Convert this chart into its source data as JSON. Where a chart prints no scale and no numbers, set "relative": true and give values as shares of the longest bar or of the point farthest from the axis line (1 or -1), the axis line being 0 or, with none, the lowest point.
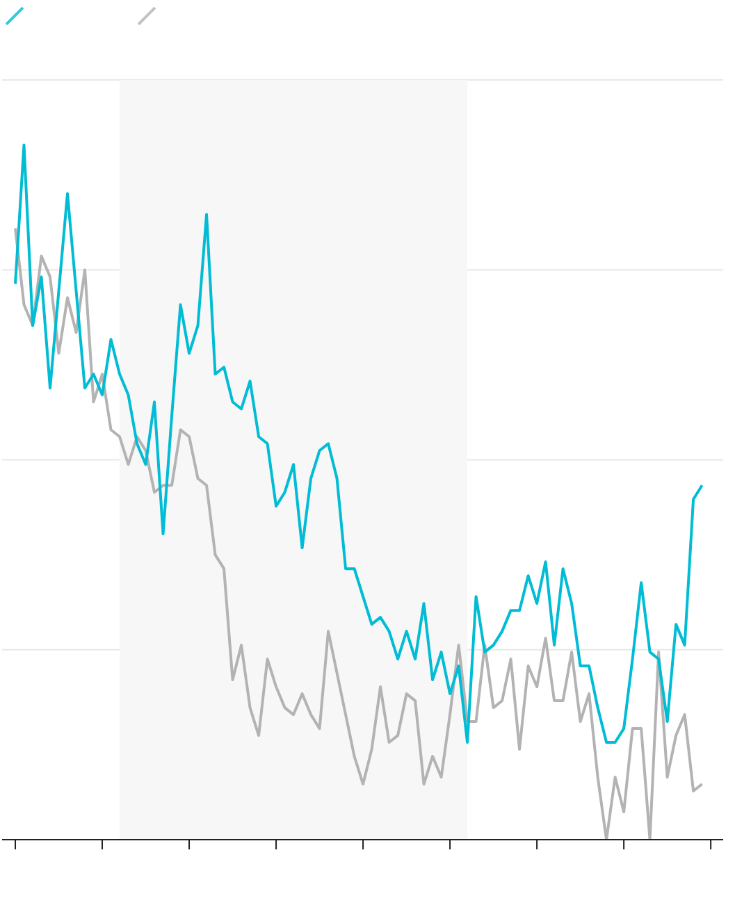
{
  "chart_data": {
    "type": "line",
    "relative": true,
    "grid": "y",
    "line_style": "solid",
    "marker": "none",
    "categories": [
      null,
      null,
      null,
      null,
      null,
      null,
      null,
      null,
      null,
      null,
      null,
      null,
      null,
      null,
      null,
      null,
      null,
      null,
      null,
      null,
      null,
      null,
      null,
      null,
      null,
      null,
      null,
      null,
      null,
      null,
      null,
      null,
      null,
      null,
      null,
      null,
      null,
      null,
      null,
      null,
      null,
      null,
      null,
      null,
      null,
      null,
      null,
      null,
      null,
      null,
      null,
      null,
      null,
      null,
      null,
      null,
      null,
      null,
      null,
      null,
      null,
      null,
      null,
      null,
      null,
      null,
      null,
      null,
      null,
      null,
      null,
      null,
      null,
      null,
      null,
      null,
      null,
      null,
      null,
      null
    ],
    "series": [
      {
        "color": "#b3b3b3",
        "values": [
          0.88,
          0.77,
          0.74,
          0.84,
          0.81,
          0.7,
          0.78,
          0.73,
          0.82,
          0.63,
          0.67,
          0.59,
          0.58,
          0.54,
          0.58,
          0.56,
          0.5,
          0.51,
          0.51,
          0.59,
          0.58,
          0.52,
          0.51,
          0.41,
          0.39,
          0.23,
          0.28,
          0.19,
          0.15,
          0.26,
          0.22,
          0.19,
          0.18,
          0.21,
          0.18,
          0.16,
          0.3,
          0.24,
          0.18,
          0.12,
          0.08,
          0.13,
          0.22,
          0.14,
          0.15,
          0.21,
          0.2,
          0.08,
          0.12,
          0.09,
          0.18,
          0.28,
          0.17,
          0.17,
          0.28,
          0.19,
          0.2,
          0.26,
          0.13,
          0.25,
          0.22,
          0.29,
          0.2,
          0.2,
          0.27,
          0.17,
          0.21,
          0.09,
          0.0,
          0.09,
          0.04,
          0.16,
          0.16,
          0,
          0.27,
          0.09,
          0.15,
          0.18,
          0.07,
          0.08
        ]
      },
      {
        "color": "#00bcd4",
        "values": [
          0.8,
          1.0,
          0.74,
          0.81,
          0.65,
          0.79,
          0.93,
          0.79,
          0.65,
          0.67,
          0.64,
          0.72,
          0.67,
          0.64,
          0.57,
          0.54,
          0.63,
          0.44,
          0.61,
          0.77,
          0.7,
          0.74,
          0.9,
          0.67,
          0.68,
          0.63,
          0.62,
          0.66,
          0.58,
          0.57,
          0.48,
          0.5,
          0.54,
          0.42,
          0.52,
          0.56,
          0.57,
          0.52,
          0.39,
          0.39,
          0.35,
          0.31,
          0.32,
          0.3,
          0.26,
          0.3,
          0.26,
          0.34,
          0.23,
          0.27,
          0.21,
          0.25,
          0.14,
          0.35,
          0.27,
          0.28,
          0.3,
          0.33,
          0.33,
          0.38,
          0.34,
          0.4,
          0.28,
          0.39,
          0.34,
          0.25,
          0.25,
          0.19,
          0.14,
          0.14,
          0.16,
          0.26,
          0.37,
          0.27,
          0.26,
          0.17,
          0.31,
          0.28,
          0.49,
          0.51
        ]
      }
    ]
  }
}
